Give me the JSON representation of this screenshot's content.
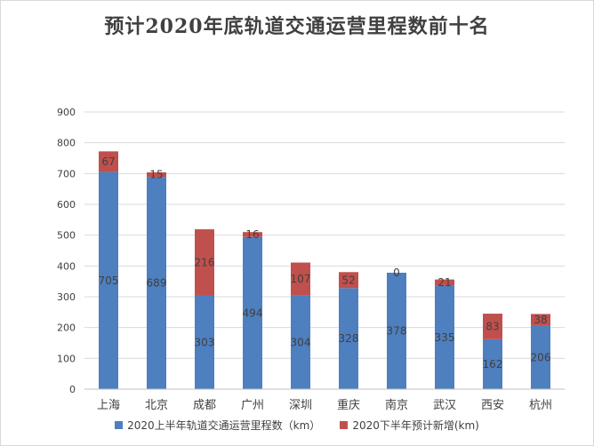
{
  "chart_data": {
    "type": "bar",
    "stacked": true,
    "title": "预计2020年底轨道交通运营里程数前十名",
    "categories": [
      "上海",
      "北京",
      "成都",
      "广州",
      "深圳",
      "重庆",
      "南京",
      "武汉",
      "西安",
      "杭州"
    ],
    "series": [
      {
        "name": "2020上半年轨道交通运营里程数（km）",
        "color": "#4e7fbf",
        "values": [
          705,
          689,
          303,
          494,
          304,
          328,
          378,
          335,
          162,
          206
        ]
      },
      {
        "name": "2020下半年预计新增(km)",
        "color": "#c0504d",
        "values": [
          67,
          15,
          216,
          16,
          107,
          52,
          0,
          21,
          83,
          38
        ]
      }
    ],
    "ylim": [
      0,
      900
    ],
    "yticks": [
      0,
      100,
      200,
      300,
      400,
      500,
      600,
      700,
      800,
      900
    ],
    "grid": true,
    "legend_position": "bottom"
  }
}
